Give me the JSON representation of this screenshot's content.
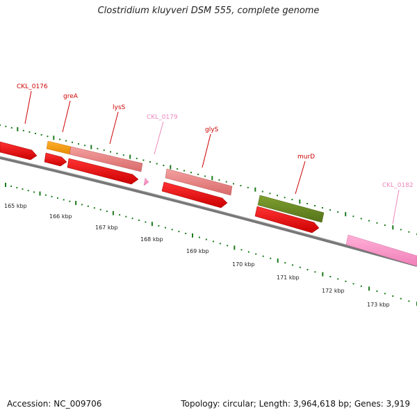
{
  "title": "Clostridium kluyveri DSM 555, complete genome",
  "accession": "Accession: NC_009706",
  "topology": "Topology: circular; Length: 3,964,618 bp; Genes: 3,919",
  "colors": {
    "gene_forward": "#ff0000",
    "gene_pink_light": "#f08a8a",
    "gene_orange": "#ff9900",
    "gene_olive": "#6b8e23",
    "gene_pink": "#ff99cc",
    "label_red": "#cc0000",
    "label_pink": "#ee88bb",
    "tick_green": "#1a7a1a",
    "backbone": "#777777"
  },
  "gene_labels": [
    "CKL_0176",
    "greA",
    "lysS",
    "CKL_0179",
    "glyS",
    "murD",
    "CKL_0182"
  ],
  "kbp_labels": [
    "165 kbp",
    "166 kbp",
    "167 kbp",
    "168 kbp",
    "169 kbp",
    "170 kbp",
    "171 kbp",
    "172 kbp",
    "173 kbp"
  ]
}
